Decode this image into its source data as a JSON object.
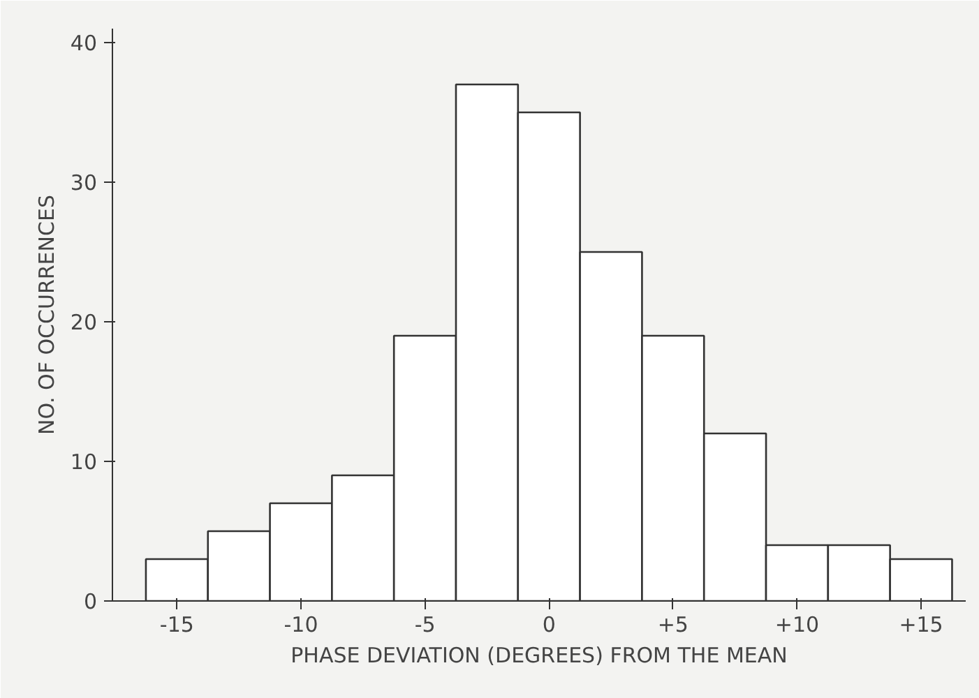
{
  "chart_data": {
    "type": "histogram",
    "xlabel": "PHASE DEVIATION (DEGREES) FROM THE MEAN",
    "ylabel": "NO. OF OCCURRENCES",
    "bins": [
      -16.25,
      -13.75,
      -11.25,
      -8.75,
      -6.25,
      -3.75,
      -1.25,
      1.25,
      3.75,
      6.25,
      8.75,
      11.25,
      13.75,
      16.25
    ],
    "values": [
      3,
      5,
      7,
      9,
      19,
      37,
      35,
      25,
      19,
      12,
      4,
      4,
      3
    ],
    "color": "#ffffff",
    "xlim": [
      -17.6,
      16.8
    ],
    "ylim": [
      0,
      41
    ],
    "xticks": [
      {
        "value": -15,
        "label": "-15"
      },
      {
        "value": -10,
        "label": "-10"
      },
      {
        "value": -5,
        "label": "-5"
      },
      0,
      {
        "value": 5,
        "label": "+5"
      },
      {
        "value": 10,
        "label": "+10"
      },
      {
        "value": 15,
        "label": "+15"
      }
    ],
    "yticks": [
      0,
      10,
      20,
      30,
      40
    ],
    "grid": false
  }
}
